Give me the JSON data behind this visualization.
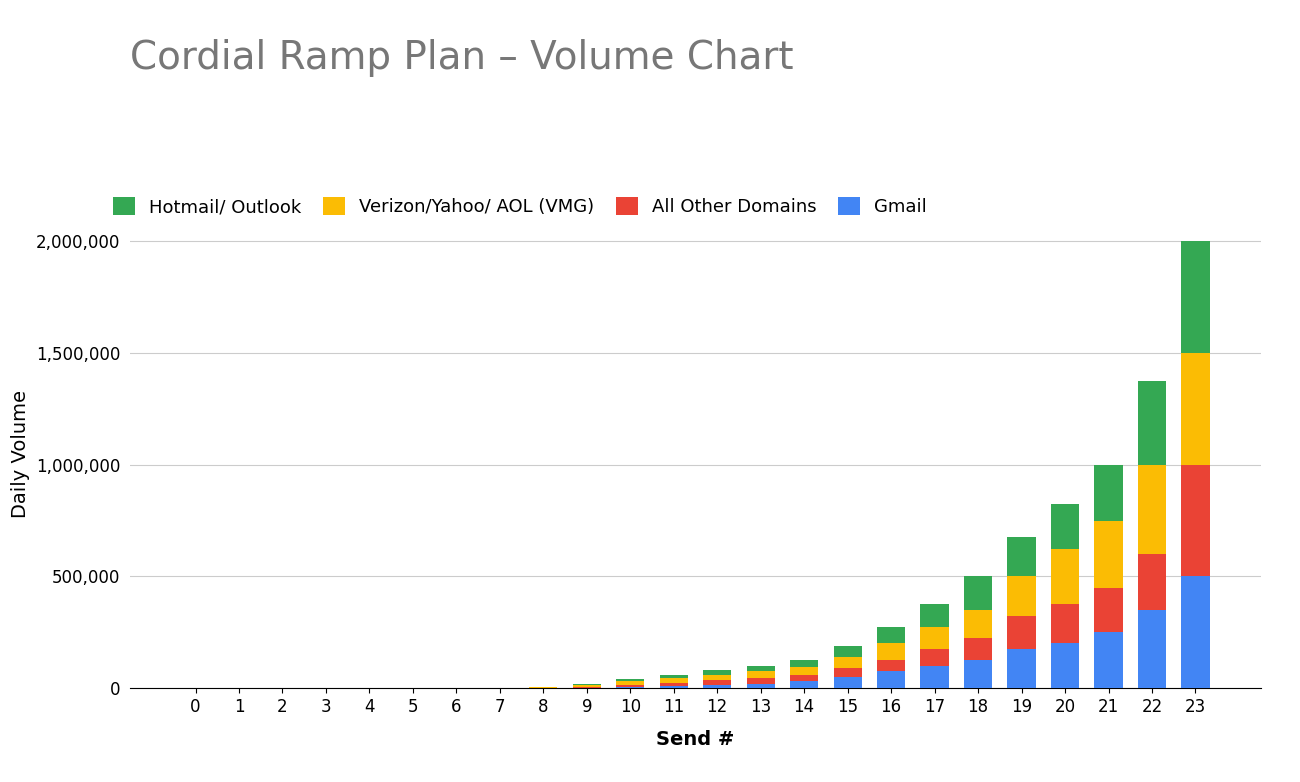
{
  "title": "Cordial Ramp Plan – Volume Chart",
  "xlabel": "Send #",
  "ylabel": "Daily Volume",
  "categories": [
    0,
    1,
    2,
    3,
    4,
    5,
    6,
    7,
    8,
    9,
    10,
    11,
    12,
    13,
    14,
    15,
    16,
    17,
    18,
    19,
    20,
    21,
    22,
    23
  ],
  "gmail": [
    0,
    0,
    0,
    0,
    0,
    0,
    0,
    0,
    0,
    0,
    5000,
    10000,
    15000,
    20000,
    30000,
    50000,
    75000,
    100000,
    125000,
    175000,
    200000,
    250000,
    350000,
    500000
  ],
  "all_other": [
    0,
    0,
    0,
    0,
    0,
    0,
    0,
    0,
    0,
    5000,
    10000,
    15000,
    20000,
    25000,
    30000,
    40000,
    50000,
    75000,
    100000,
    150000,
    175000,
    200000,
    250000,
    500000
  ],
  "vmg": [
    0,
    0,
    0,
    0,
    0,
    0,
    0,
    0,
    5000,
    10000,
    15000,
    20000,
    25000,
    30000,
    35000,
    50000,
    75000,
    100000,
    125000,
    175000,
    250000,
    300000,
    400000,
    500000
  ],
  "hotmail": [
    0,
    0,
    0,
    0,
    0,
    0,
    0,
    0,
    2000,
    5000,
    10000,
    15000,
    20000,
    25000,
    30000,
    50000,
    75000,
    100000,
    150000,
    175000,
    200000,
    250000,
    375000,
    500000
  ],
  "gmail_color": "#4285F4",
  "all_other_color": "#EA4335",
  "vmg_color": "#FBBC04",
  "hotmail_color": "#34A853",
  "background_color": "#FFFFFF",
  "grid_color": "#CCCCCC",
  "title_color": "#777777",
  "title_fontsize": 28,
  "legend_fontsize": 13,
  "axis_label_fontsize": 14,
  "tick_fontsize": 12,
  "ylim": [
    0,
    2100000
  ],
  "yticks": [
    0,
    500000,
    1000000,
    1500000,
    2000000
  ]
}
